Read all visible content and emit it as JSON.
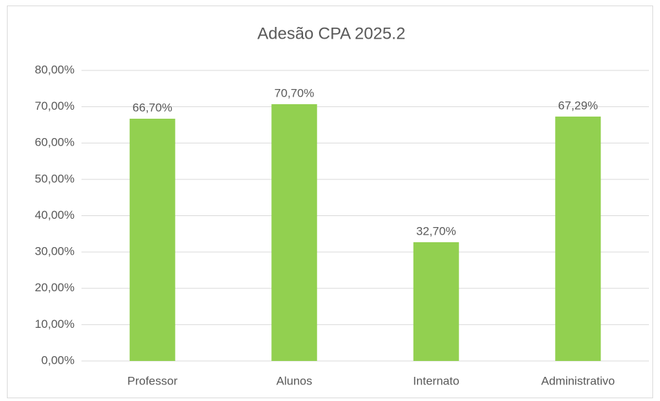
{
  "chart_data": {
    "type": "bar",
    "title": "Adesão CPA 2025.2",
    "categories": [
      "Professor",
      "Alunos",
      "Internato",
      "Administrativo"
    ],
    "values": [
      66.7,
      70.7,
      32.7,
      67.29
    ],
    "value_labels": [
      "66,70%",
      "70,70%",
      "32,70%",
      "67,29%"
    ],
    "color": "#92d050",
    "ylim": [
      0,
      80
    ],
    "yticks": [
      {
        "value": 0,
        "label": "0,00%"
      },
      {
        "value": 10,
        "label": "10,00%"
      },
      {
        "value": 20,
        "label": "20,00%"
      },
      {
        "value": 30,
        "label": "30,00%"
      },
      {
        "value": 40,
        "label": "40,00%"
      },
      {
        "value": 50,
        "label": "50,00%"
      },
      {
        "value": 60,
        "label": "60,00%"
      },
      {
        "value": 70,
        "label": "70,00%"
      },
      {
        "value": 80,
        "label": "80,00%"
      }
    ],
    "grid": true
  }
}
